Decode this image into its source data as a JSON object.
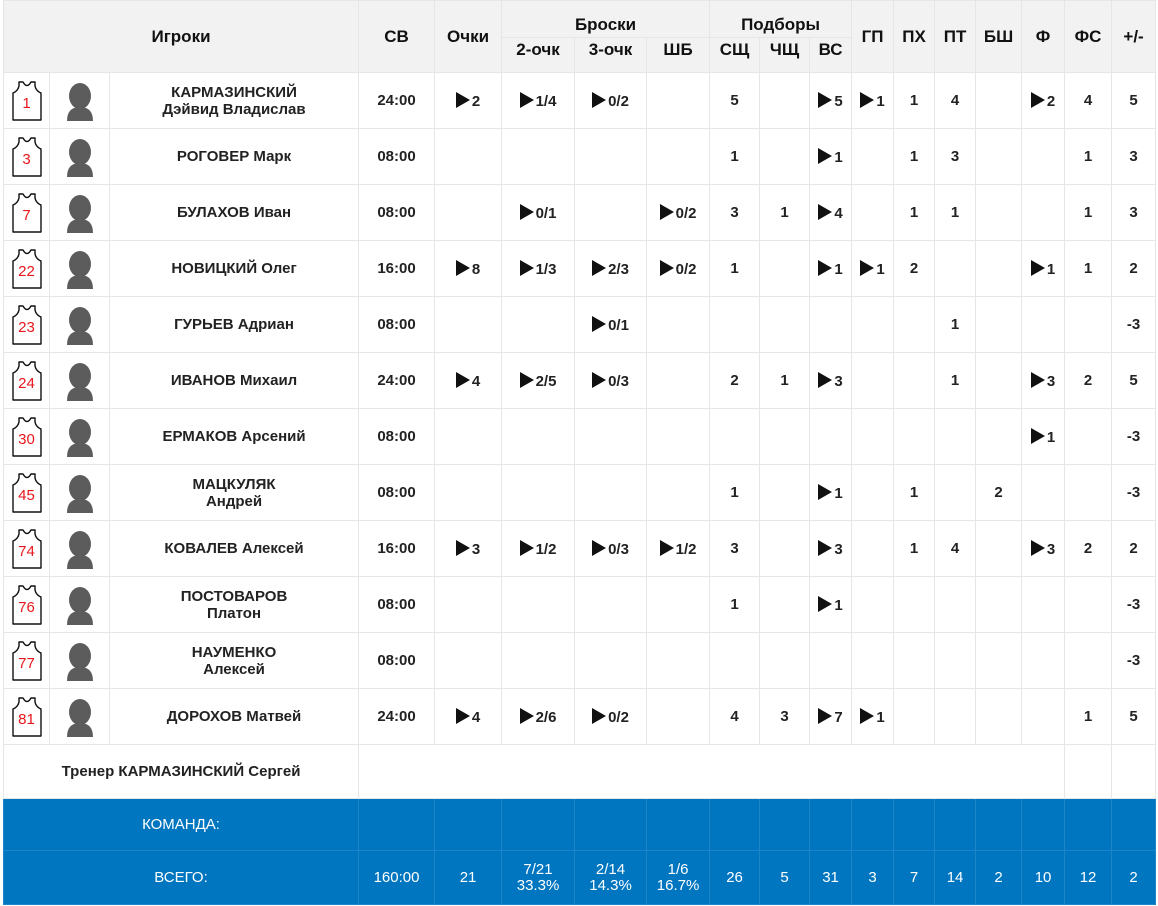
{
  "header": {
    "players": "Игроки",
    "sv": "СВ",
    "points": "Очки",
    "shots": "Броски",
    "two": "2-очк",
    "three": "3-очк",
    "ft": "ШБ",
    "rebounds": "Подборы",
    "def": "СЩ",
    "off": "ЧЩ",
    "total": "ВС",
    "ast": "ГП",
    "stl": "ПХ",
    "tov": "ПТ",
    "blk": "БШ",
    "fouls": "Ф",
    "fd": "ФС",
    "pm": "+/-"
  },
  "players": [
    {
      "num": "1",
      "surname": "КАРМАЗИНСКИЙ",
      "name": "Дэйвид Владислав",
      "two_lines": true,
      "time": "24:00",
      "pts": "2",
      "pts_link": true,
      "two": "1/4",
      "two_link": true,
      "three": "0/2",
      "three_link": true,
      "ft": "",
      "ft_link": false,
      "dr": "5",
      "or": "",
      "tr": "5",
      "tr_link": true,
      "ast": "1",
      "ast_link": true,
      "stl": "1",
      "tov": "4",
      "blk": "",
      "fouls": "2",
      "fouls_link": true,
      "fd": "4",
      "pm": "5"
    },
    {
      "num": "3",
      "surname": "РОГОВЕР",
      "name": "Марк",
      "two_lines": false,
      "time": "08:00",
      "pts": "",
      "pts_link": false,
      "two": "",
      "two_link": false,
      "three": "",
      "three_link": false,
      "ft": "",
      "ft_link": false,
      "dr": "1",
      "or": "",
      "tr": "1",
      "tr_link": true,
      "ast": "",
      "ast_link": false,
      "stl": "1",
      "tov": "3",
      "blk": "",
      "fouls": "",
      "fouls_link": false,
      "fd": "1",
      "pm": "3"
    },
    {
      "num": "7",
      "surname": "БУЛАХОВ",
      "name": "Иван",
      "two_lines": false,
      "time": "08:00",
      "pts": "",
      "pts_link": false,
      "two": "0/1",
      "two_link": true,
      "three": "",
      "three_link": false,
      "ft": "0/2",
      "ft_link": true,
      "dr": "3",
      "or": "1",
      "tr": "4",
      "tr_link": true,
      "ast": "",
      "ast_link": false,
      "stl": "1",
      "tov": "1",
      "blk": "",
      "fouls": "",
      "fouls_link": false,
      "fd": "1",
      "pm": "3"
    },
    {
      "num": "22",
      "surname": "НОВИЦКИЙ",
      "name": "Олег",
      "two_lines": false,
      "time": "16:00",
      "pts": "8",
      "pts_link": true,
      "two": "1/3",
      "two_link": true,
      "three": "2/3",
      "three_link": true,
      "ft": "0/2",
      "ft_link": true,
      "dr": "1",
      "or": "",
      "tr": "1",
      "tr_link": true,
      "ast": "1",
      "ast_link": true,
      "stl": "2",
      "tov": "",
      "blk": "",
      "fouls": "1",
      "fouls_link": true,
      "fd": "1",
      "pm": "2"
    },
    {
      "num": "23",
      "surname": "ГУРЬЕВ",
      "name": "Адриан",
      "two_lines": false,
      "time": "08:00",
      "pts": "",
      "pts_link": false,
      "two": "",
      "two_link": false,
      "three": "0/1",
      "three_link": true,
      "ft": "",
      "ft_link": false,
      "dr": "",
      "or": "",
      "tr": "",
      "tr_link": false,
      "ast": "",
      "ast_link": false,
      "stl": "",
      "tov": "1",
      "blk": "",
      "fouls": "",
      "fouls_link": false,
      "fd": "",
      "pm": "-3"
    },
    {
      "num": "24",
      "surname": "ИВАНОВ",
      "name": "Михаил",
      "two_lines": false,
      "time": "24:00",
      "pts": "4",
      "pts_link": true,
      "two": "2/5",
      "two_link": true,
      "three": "0/3",
      "three_link": true,
      "ft": "",
      "ft_link": false,
      "dr": "2",
      "or": "1",
      "tr": "3",
      "tr_link": true,
      "ast": "",
      "ast_link": false,
      "stl": "",
      "tov": "1",
      "blk": "",
      "fouls": "3",
      "fouls_link": true,
      "fd": "2",
      "pm": "5"
    },
    {
      "num": "30",
      "surname": "ЕРМАКОВ",
      "name": "Арсений",
      "two_lines": false,
      "time": "08:00",
      "pts": "",
      "pts_link": false,
      "two": "",
      "two_link": false,
      "three": "",
      "three_link": false,
      "ft": "",
      "ft_link": false,
      "dr": "",
      "or": "",
      "tr": "",
      "tr_link": false,
      "ast": "",
      "ast_link": false,
      "stl": "",
      "tov": "",
      "blk": "",
      "fouls": "1",
      "fouls_link": true,
      "fd": "",
      "pm": "-3"
    },
    {
      "num": "45",
      "surname": "МАЦКУЛЯК",
      "name": "Андрей",
      "two_lines": true,
      "time": "08:00",
      "pts": "",
      "pts_link": false,
      "two": "",
      "two_link": false,
      "three": "",
      "three_link": false,
      "ft": "",
      "ft_link": false,
      "dr": "1",
      "or": "",
      "tr": "1",
      "tr_link": true,
      "ast": "",
      "ast_link": false,
      "stl": "1",
      "tov": "",
      "blk": "2",
      "fouls": "",
      "fouls_link": false,
      "fd": "",
      "pm": "-3"
    },
    {
      "num": "74",
      "surname": "КОВАЛЕВ",
      "name": "Алексей",
      "two_lines": false,
      "time": "16:00",
      "pts": "3",
      "pts_link": true,
      "two": "1/2",
      "two_link": true,
      "three": "0/3",
      "three_link": true,
      "ft": "1/2",
      "ft_link": true,
      "dr": "3",
      "or": "",
      "tr": "3",
      "tr_link": true,
      "ast": "",
      "ast_link": false,
      "stl": "1",
      "tov": "4",
      "blk": "",
      "fouls": "3",
      "fouls_link": true,
      "fd": "2",
      "pm": "2"
    },
    {
      "num": "76",
      "surname": "ПОСТОВАРОВ",
      "name": "Платон",
      "two_lines": true,
      "time": "08:00",
      "pts": "",
      "pts_link": false,
      "two": "",
      "two_link": false,
      "three": "",
      "three_link": false,
      "ft": "",
      "ft_link": false,
      "dr": "1",
      "or": "",
      "tr": "1",
      "tr_link": true,
      "ast": "",
      "ast_link": false,
      "stl": "",
      "tov": "",
      "blk": "",
      "fouls": "",
      "fouls_link": false,
      "fd": "",
      "pm": "-3"
    },
    {
      "num": "77",
      "surname": "НАУМЕНКО",
      "name": "Алексей",
      "two_lines": true,
      "time": "08:00",
      "pts": "",
      "pts_link": false,
      "two": "",
      "two_link": false,
      "three": "",
      "three_link": false,
      "ft": "",
      "ft_link": false,
      "dr": "",
      "or": "",
      "tr": "",
      "tr_link": false,
      "ast": "",
      "ast_link": false,
      "stl": "",
      "tov": "",
      "blk": "",
      "fouls": "",
      "fouls_link": false,
      "fd": "",
      "pm": "-3"
    },
    {
      "num": "81",
      "surname": "ДОРОХОВ",
      "name": "Матвей",
      "two_lines": false,
      "time": "24:00",
      "pts": "4",
      "pts_link": true,
      "two": "2/6",
      "two_link": true,
      "three": "0/2",
      "three_link": true,
      "ft": "",
      "ft_link": false,
      "dr": "4",
      "or": "3",
      "tr": "7",
      "tr_link": true,
      "ast": "1",
      "ast_link": true,
      "stl": "",
      "tov": "",
      "blk": "",
      "fouls": "",
      "fouls_link": false,
      "fd": "1",
      "pm": "5"
    }
  ],
  "coach": "Тренер КАРМАЗИНСКИЙ Сергей",
  "team_label": "КОМАНДА:",
  "totals": {
    "label": "ВСЕГО:",
    "time": "160:00",
    "pts": "21",
    "two_made": "7/21",
    "two_pct": "33.3%",
    "three_made": "2/14",
    "three_pct": "14.3%",
    "ft_made": "1/6",
    "ft_pct": "16.7%",
    "dr": "26",
    "or": "5",
    "tr": "31",
    "ast": "3",
    "stl": "7",
    "tov": "14",
    "blk": "2",
    "fouls": "10",
    "fd": "12",
    "pm": "2"
  },
  "colors": {
    "header_bg": "#f2f2f2",
    "footer_bg": "#0076c0",
    "jersey_number": "#e8161b"
  },
  "icons": {
    "jersey": "jersey-icon",
    "avatar": "player-avatar-icon",
    "play": "play-triangle-icon"
  }
}
